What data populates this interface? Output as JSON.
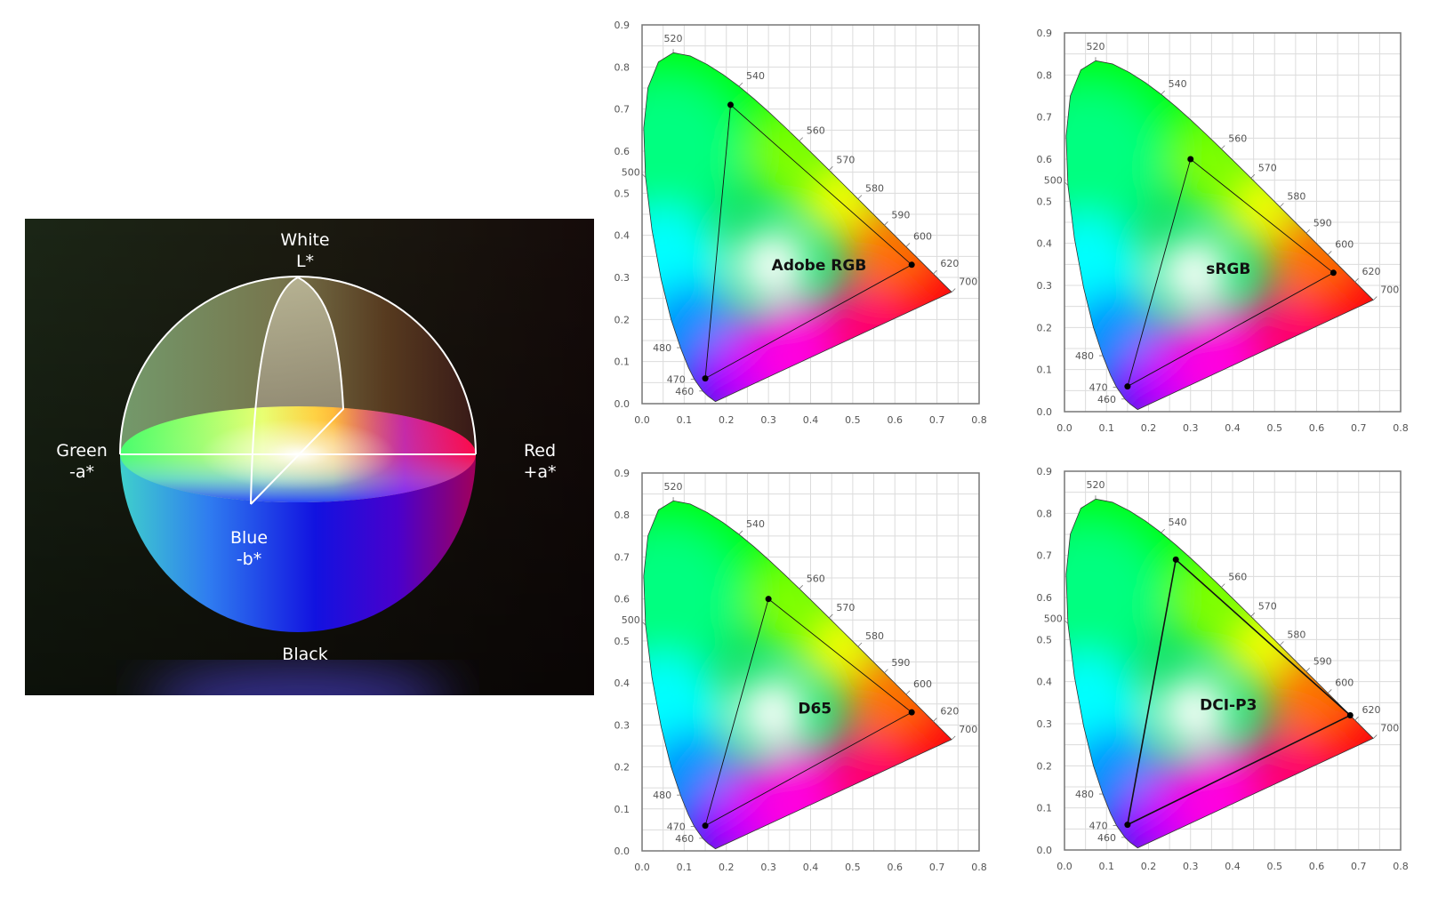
{
  "lab_sphere": {
    "labels": {
      "white": "White",
      "l_axis": "L*",
      "green": "Green",
      "neg_a": "-a*",
      "red": "Red",
      "pos_a": "+a*",
      "blue": "Blue",
      "neg_b": "-b*",
      "black": "Black"
    }
  },
  "chart_data": [
    {
      "type": "scatter",
      "label": "Adobe RGB",
      "xlim": [
        0,
        0.8
      ],
      "ylim": [
        0,
        0.9
      ],
      "xticks": [
        "0.0",
        "0.1",
        "0.2",
        "0.3",
        "0.4",
        "0.5",
        "0.6",
        "0.7",
        "0.8"
      ],
      "yticks": [
        "0.0",
        "0.1",
        "0.2",
        "0.3",
        "0.4",
        "0.5",
        "0.6",
        "0.7",
        "0.8",
        "0.9"
      ],
      "grid": true,
      "primaries": {
        "red": [
          0.64,
          0.33
        ],
        "green": [
          0.21,
          0.71
        ],
        "blue": [
          0.15,
          0.06
        ]
      },
      "label_position": [
        0.42,
        0.33
      ]
    },
    {
      "type": "scatter",
      "label": "sRGB",
      "xlim": [
        0,
        0.8
      ],
      "ylim": [
        0,
        0.9
      ],
      "xticks": [
        "0.0",
        "0.1",
        "0.2",
        "0.3",
        "0.4",
        "0.5",
        "0.6",
        "0.7",
        "0.8"
      ],
      "yticks": [
        "0.0",
        "0.1",
        "0.2",
        "0.3",
        "0.4",
        "0.5",
        "0.6",
        "0.7",
        "0.8",
        "0.9"
      ],
      "grid": true,
      "primaries": {
        "red": [
          0.64,
          0.33
        ],
        "green": [
          0.3,
          0.6
        ],
        "blue": [
          0.15,
          0.06
        ]
      },
      "label_position": [
        0.39,
        0.34
      ]
    },
    {
      "type": "scatter",
      "label": "D65",
      "xlim": [
        0,
        0.8
      ],
      "ylim": [
        0,
        0.9
      ],
      "xticks": [
        "0.0",
        "0.1",
        "0.2",
        "0.3",
        "0.4",
        "0.5",
        "0.6",
        "0.7",
        "0.8"
      ],
      "yticks": [
        "0.0",
        "0.1",
        "0.2",
        "0.3",
        "0.4",
        "0.5",
        "0.6",
        "0.7",
        "0.8",
        "0.9"
      ],
      "grid": true,
      "primaries": {
        "red": [
          0.64,
          0.33
        ],
        "green": [
          0.3,
          0.6
        ],
        "blue": [
          0.15,
          0.06
        ]
      },
      "label_position": [
        0.41,
        0.34
      ]
    },
    {
      "type": "scatter",
      "label": "DCI-P3",
      "xlim": [
        0,
        0.8
      ],
      "ylim": [
        0,
        0.9
      ],
      "xticks": [
        "0.0",
        "0.1",
        "0.2",
        "0.3",
        "0.4",
        "0.5",
        "0.6",
        "0.7",
        "0.8"
      ],
      "yticks": [
        "0.0",
        "0.1",
        "0.2",
        "0.3",
        "0.4",
        "0.5",
        "0.6",
        "0.7",
        "0.8",
        "0.9"
      ],
      "grid": true,
      "primaries": {
        "red": [
          0.68,
          0.32
        ],
        "green": [
          0.265,
          0.69
        ],
        "blue": [
          0.15,
          0.06
        ]
      },
      "label_position": [
        0.39,
        0.345
      ]
    }
  ],
  "wavelength_labels": [
    {
      "nm": "460",
      "xy": [
        0.144,
        0.03
      ]
    },
    {
      "nm": "470",
      "xy": [
        0.124,
        0.058
      ]
    },
    {
      "nm": "480",
      "xy": [
        0.091,
        0.133
      ]
    },
    {
      "nm": "500",
      "xy": [
        0.008,
        0.538
      ]
    },
    {
      "nm": "520",
      "xy": [
        0.074,
        0.834
      ]
    },
    {
      "nm": "540",
      "xy": [
        0.23,
        0.754
      ]
    },
    {
      "nm": "560",
      "xy": [
        0.373,
        0.624
      ]
    },
    {
      "nm": "570",
      "xy": [
        0.444,
        0.555
      ]
    },
    {
      "nm": "580",
      "xy": [
        0.513,
        0.487
      ]
    },
    {
      "nm": "590",
      "xy": [
        0.575,
        0.424
      ]
    },
    {
      "nm": "600",
      "xy": [
        0.627,
        0.373
      ]
    },
    {
      "nm": "620",
      "xy": [
        0.691,
        0.308
      ]
    },
    {
      "nm": "700",
      "xy": [
        0.735,
        0.265
      ]
    }
  ]
}
